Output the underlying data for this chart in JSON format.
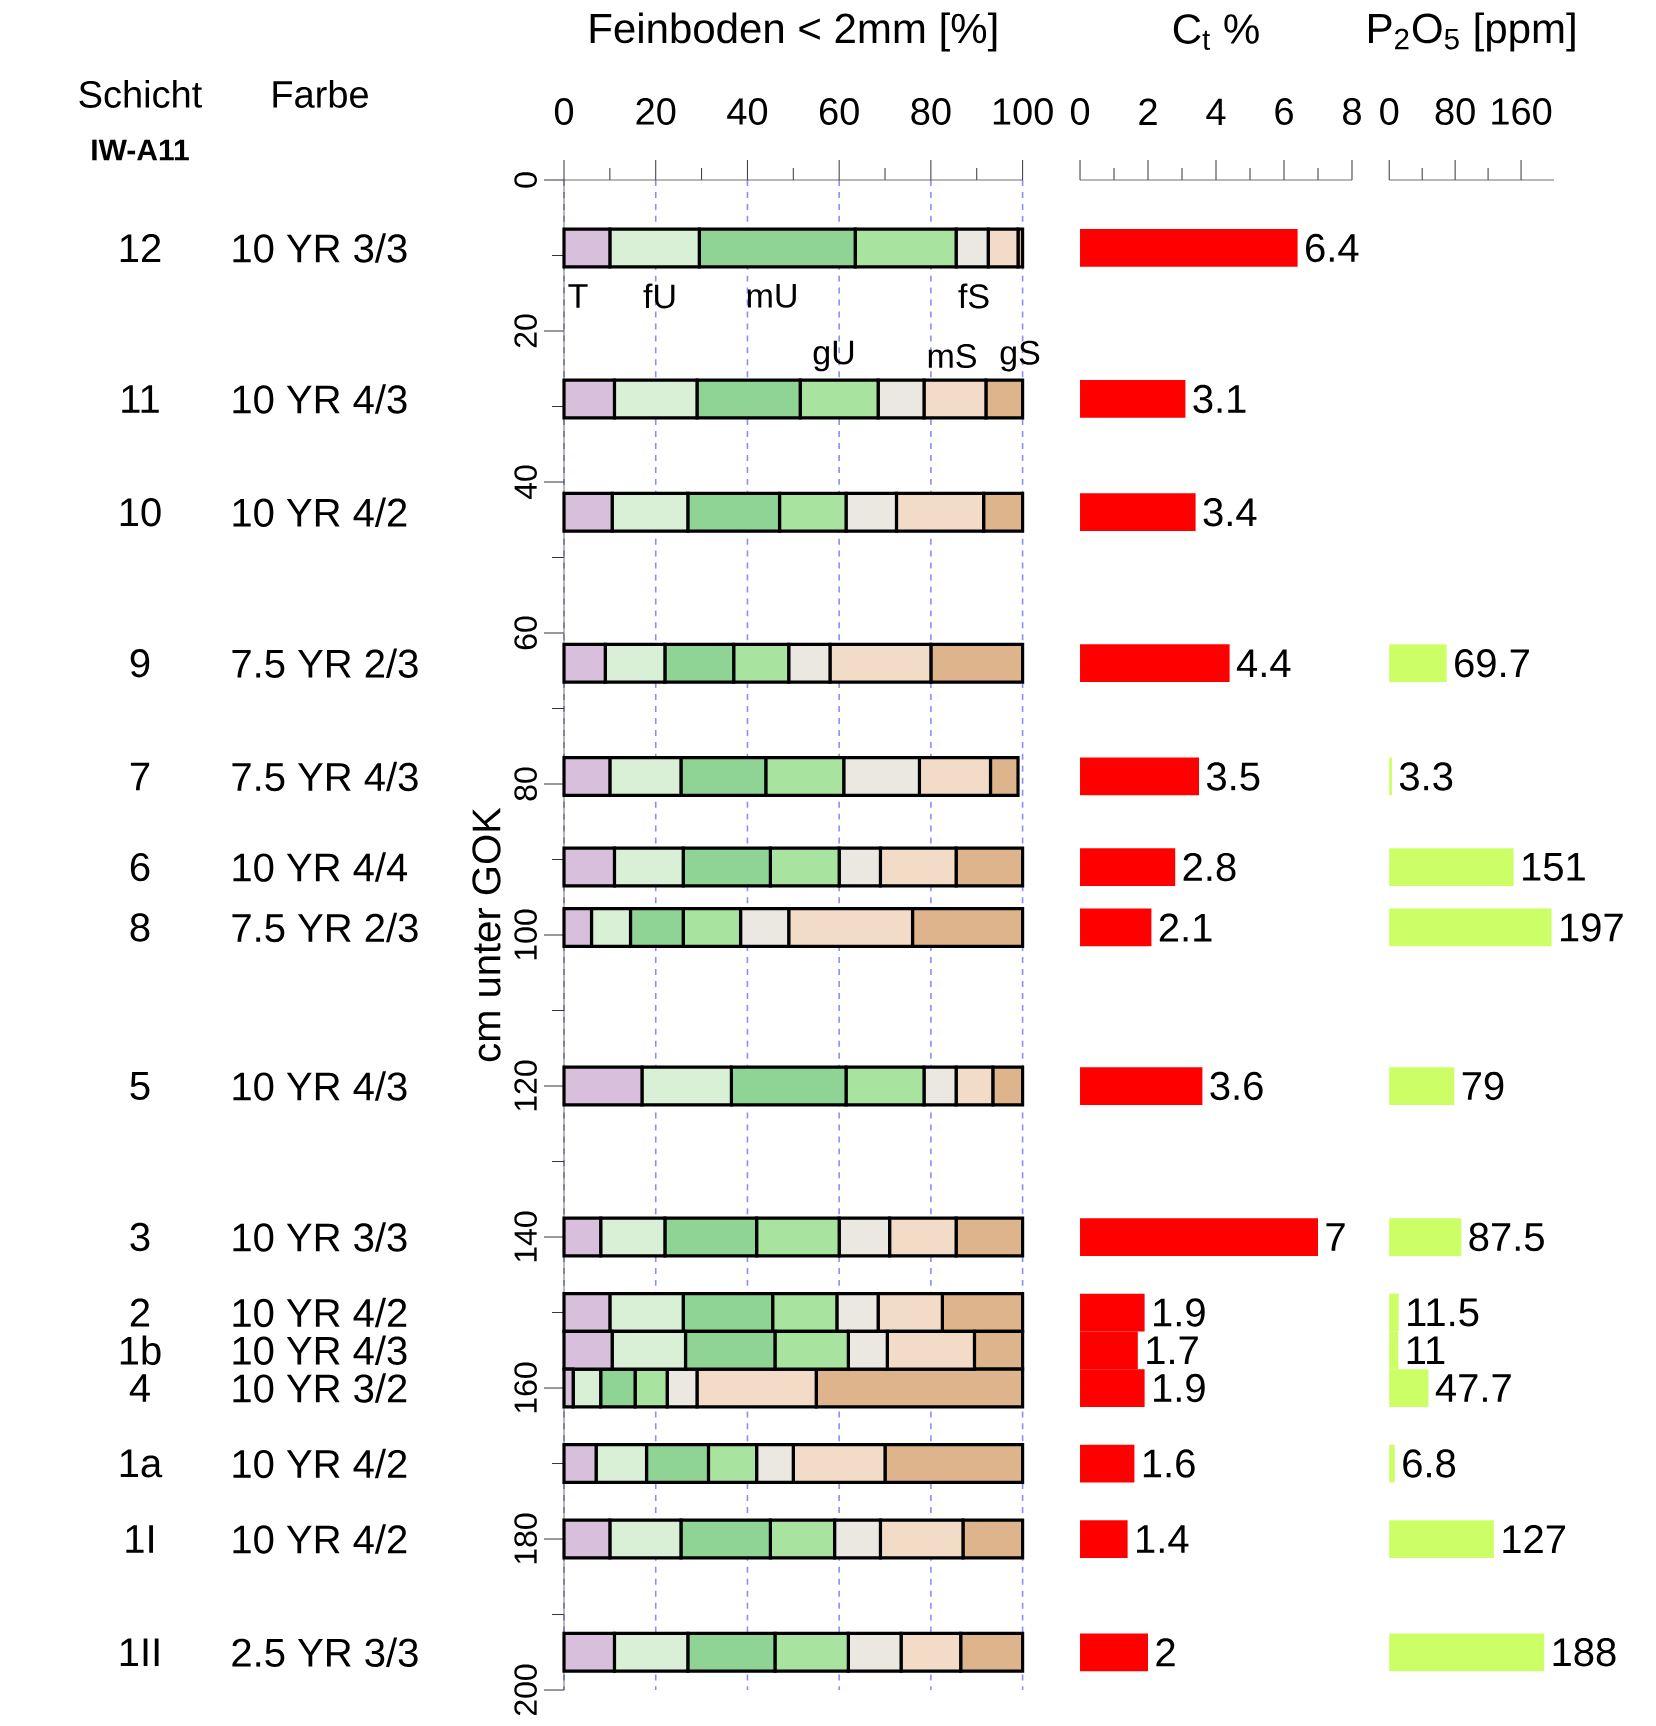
{
  "chart_data": [
    {
      "type": "bar",
      "orientation": "horizontal",
      "stacked": true,
      "title": "Feinboden < 2mm [%]",
      "ylabel": "cm unter GOK",
      "x": [
        9,
        29,
        44,
        64,
        79,
        91,
        99,
        120,
        140,
        150,
        155,
        160,
        170,
        180,
        195
      ],
      "xlim": [
        0,
        100
      ],
      "xticks": [
        0,
        20,
        40,
        60,
        80,
        100
      ],
      "ylim": [
        200,
        0
      ],
      "yticks": [
        0,
        20,
        40,
        60,
        80,
        100,
        120,
        140,
        160,
        180,
        200
      ],
      "grid": "x",
      "legend": false,
      "annotations": [
        "Schicht",
        "Farbe",
        "IW-A11",
        "12",
        "10 YR 3/3",
        "11",
        "10 YR 4/3",
        "10",
        "10 YR 4/2",
        "9",
        "7.5 YR 2/3",
        "7",
        "7.5 YR 4/3",
        "6",
        "10 YR 4/4",
        "8",
        "7.5 YR 2/3",
        "5",
        "10 YR 4/3",
        "3",
        "10 YR 3/3",
        "2",
        "10 YR 4/2",
        "1b",
        "10 YR 4/3",
        "4",
        "10 YR 3/2",
        "1a",
        "10 YR 4/2",
        "1I",
        "10 YR 4/2",
        "1II",
        "2.5 YR 3/3"
      ],
      "series": [
        {
          "name": "T",
          "color": "#d8c0dc",
          "values": [
            10,
            11,
            10.5,
            9,
            10,
            11,
            6,
            17,
            8,
            10,
            10.5,
            2,
            7,
            10,
            11
          ]
        },
        {
          "name": "fU",
          "color": "#d9efd6",
          "values": [
            19.5,
            18,
            16.5,
            13,
            15.5,
            15,
            8.5,
            19.5,
            14,
            16,
            16,
            6,
            11,
            15.5,
            16
          ]
        },
        {
          "name": "mU",
          "color": "#8fd494",
          "values": [
            34,
            22.5,
            20,
            15,
            18.5,
            19,
            11.5,
            25,
            20,
            19.5,
            19.5,
            7.5,
            13.5,
            19.5,
            19
          ]
        },
        {
          "name": "gU",
          "color": "#a8e3a0",
          "values": [
            22,
            17,
            14.5,
            12,
            17,
            15,
            12.5,
            17,
            18,
            14,
            16,
            7,
            10.5,
            14,
            16
          ]
        },
        {
          "name": "fS",
          "color": "#ebe8e2",
          "values": [
            7,
            10,
            11,
            9,
            16.5,
            9,
            10.5,
            7,
            11,
            9,
            8.5,
            6.5,
            8,
            10,
            11.5
          ]
        },
        {
          "name": "mS",
          "color": "#f2dcc8",
          "values": [
            6.5,
            13.5,
            19,
            22,
            15.5,
            16.5,
            27,
            8,
            14.5,
            14,
            19,
            26,
            20,
            18,
            13
          ]
        },
        {
          "name": "gS",
          "color": "#ddb48c",
          "values": [
            1,
            8,
            8.5,
            20,
            6,
            14.5,
            24,
            6.5,
            14.5,
            17.5,
            10.5,
            45,
            30,
            13,
            13.5
          ]
        }
      ]
    },
    {
      "type": "bar",
      "orientation": "horizontal",
      "title": "C$_{t}$ %",
      "x": [
        9,
        29,
        44,
        64,
        79,
        91,
        99,
        120,
        140,
        150,
        155,
        160,
        170,
        180,
        195
      ],
      "xlim": [
        0,
        8
      ],
      "xticks": [
        0,
        2,
        4,
        6,
        8
      ],
      "ylim": [
        200,
        0
      ],
      "tick_labels": "x",
      "data_labels": true,
      "color": "#ff0000",
      "values": [
        6.4,
        3.1,
        3.4,
        4.4,
        3.5,
        2.8,
        2.1,
        3.6,
        7,
        1.9,
        1.7,
        1.9,
        1.6,
        1.4,
        2
      ]
    },
    {
      "type": "bar",
      "orientation": "horizontal",
      "title": "P$_{2}$O$_{5}$ [ppm]",
      "x": [
        64,
        79,
        91,
        99,
        120,
        140,
        150,
        155,
        160,
        170,
        180,
        195
      ],
      "xlim": [
        0,
        200
      ],
      "xticks": [
        0,
        80,
        160
      ],
      "ylim": [
        200,
        0
      ],
      "tick_labels": "x",
      "data_labels": true,
      "color": "#ccff66",
      "values": [
        69.7,
        3.3,
        151,
        197,
        79,
        87.5,
        11.5,
        11,
        47.7,
        6.8,
        127,
        188
      ]
    }
  ]
}
